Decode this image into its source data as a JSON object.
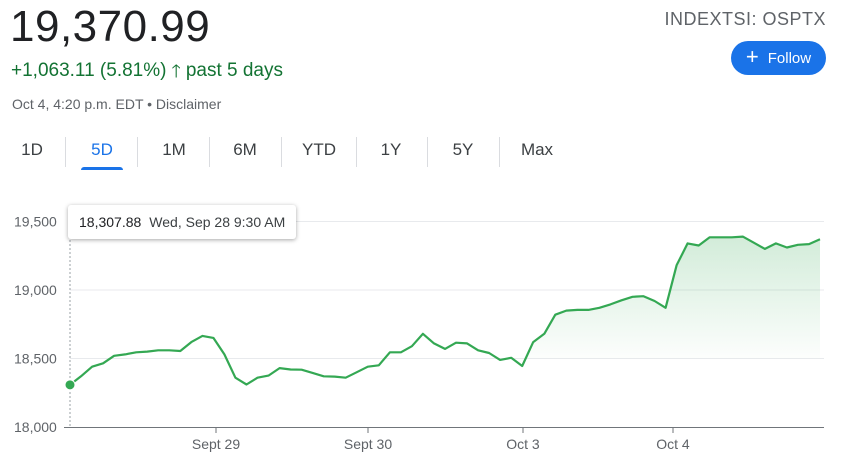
{
  "quote": {
    "price": "19,370.99",
    "change": "+1,063.11 (5.81%)",
    "period": "past 5 days",
    "meta": "Oct 4, 4:20 p.m. EDT • Disclaimer",
    "ticker": "INDEXTSI: OSPTX",
    "follow_label": "Follow",
    "arrow_icon": "arrow-up-icon",
    "plus_icon": "plus-icon"
  },
  "tabs": [
    {
      "label": "1D",
      "active": false
    },
    {
      "label": "5D",
      "active": true
    },
    {
      "label": "1M",
      "active": false
    },
    {
      "label": "6M",
      "active": false
    },
    {
      "label": "YTD",
      "active": false
    },
    {
      "label": "1Y",
      "active": false
    },
    {
      "label": "5Y",
      "active": false
    },
    {
      "label": "Max",
      "active": false
    }
  ],
  "tooltip": {
    "value": "18,307.88",
    "time": "Wed, Sep 28 9:30 AM"
  },
  "colors": {
    "line": "#34a853",
    "positive_text": "#137333",
    "accent": "#1a73e8",
    "grid": "#e8eaed"
  },
  "chart_data": {
    "type": "area",
    "title": "",
    "xlabel": "",
    "ylabel": "",
    "ylim": [
      18000,
      19600
    ],
    "yticks": [
      18000,
      18500,
      19000,
      19500
    ],
    "ytick_labels": [
      "18,000",
      "18,500",
      "19,000",
      "19,500"
    ],
    "xtick_labels": [
      "Sept 29",
      "Sept 30",
      "Oct 3",
      "Oct 4"
    ],
    "grid": true,
    "highlighted_point": {
      "x": 0,
      "y": 18307.88
    },
    "series": [
      {
        "values": [
          18307.88,
          18370,
          18440,
          18465,
          18520,
          18530,
          18545,
          18550,
          18560,
          18560,
          18555,
          18620,
          18665,
          18650,
          18530,
          18360,
          18310,
          18360,
          18375,
          18430,
          18420,
          18418,
          18395,
          18370,
          18368,
          18360,
          18400,
          18440,
          18450,
          18545,
          18545,
          18590,
          18680,
          18610,
          18570,
          18615,
          18610,
          18560,
          18540,
          18490,
          18505,
          18445,
          18620,
          18680,
          18820,
          18850,
          18855,
          18855,
          18870,
          18895,
          18925,
          18950,
          18955,
          18920,
          18870,
          19180,
          19340,
          19325,
          19385,
          19385,
          19385,
          19390,
          19345,
          19300,
          19340,
          19310,
          19330,
          19335,
          19370.99
        ]
      }
    ]
  }
}
